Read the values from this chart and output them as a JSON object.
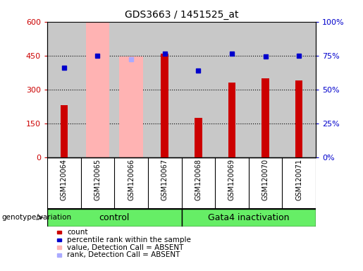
{
  "title": "GDS3663 / 1451525_at",
  "samples": [
    "GSM120064",
    "GSM120065",
    "GSM120066",
    "GSM120067",
    "GSM120068",
    "GSM120069",
    "GSM120070",
    "GSM120071"
  ],
  "red_values": [
    230,
    0,
    0,
    460,
    175,
    330,
    350,
    340
  ],
  "pink_values": [
    0,
    595,
    445,
    0,
    0,
    0,
    0,
    0
  ],
  "blue_squares": [
    395,
    450,
    0,
    458,
    385,
    458,
    445,
    450
  ],
  "light_blue_squares": [
    0,
    0,
    435,
    0,
    0,
    0,
    0,
    0
  ],
  "control_label": "control",
  "treatment_label": "Gata4 inactivation",
  "genotype_label": "genotype/variation",
  "ylim_left": [
    0,
    600
  ],
  "ylim_right": [
    0,
    100
  ],
  "yticks_left": [
    0,
    150,
    300,
    450,
    600
  ],
  "yticks_right": [
    0,
    25,
    50,
    75,
    100
  ],
  "background_color": "#ffffff",
  "bar_color_red": "#cc0000",
  "bar_color_pink": "#ffb3b3",
  "dot_color_blue": "#0000cc",
  "dot_color_lightblue": "#aaaaff",
  "tick_label_color_left": "#cc0000",
  "tick_label_color_right": "#0000cc",
  "green_color": "#66ee66",
  "gray_color": "#c8c8c8",
  "legend_items": [
    {
      "label": "count",
      "color": "#cc0000"
    },
    {
      "label": "percentile rank within the sample",
      "color": "#0000cc"
    },
    {
      "label": "value, Detection Call = ABSENT",
      "color": "#ffb3b3"
    },
    {
      "label": "rank, Detection Call = ABSENT",
      "color": "#aaaaff"
    }
  ]
}
